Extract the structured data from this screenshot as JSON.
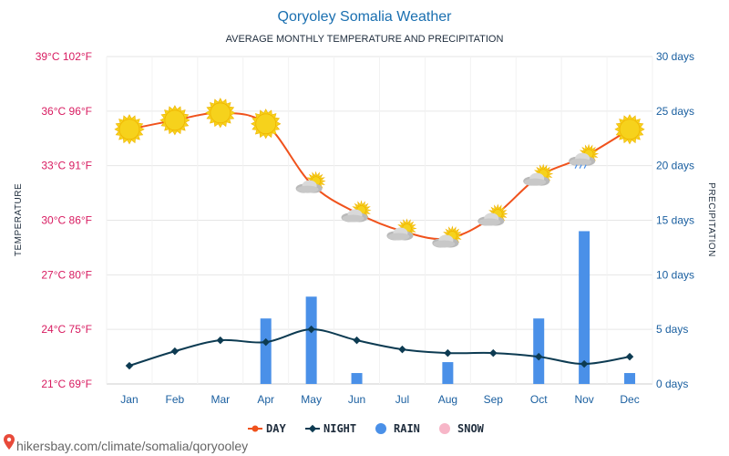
{
  "header": {
    "title": "Qoryoley Somalia Weather",
    "subtitle": "AVERAGE MONTHLY TEMPERATURE AND PRECIPITATION"
  },
  "footer": {
    "url": "hikersbay.com/climate/somalia/qoryooley"
  },
  "chart_data": {
    "type": "line",
    "categories": [
      "Jan",
      "Feb",
      "Mar",
      "Apr",
      "May",
      "Jun",
      "Jul",
      "Aug",
      "Sep",
      "Oct",
      "Nov",
      "Dec"
    ],
    "series": [
      {
        "name": "DAY",
        "type": "line",
        "axis": "left",
        "color": "#f0521c",
        "values": [
          35.0,
          35.5,
          35.9,
          35.3,
          32.0,
          30.4,
          29.4,
          29.0,
          30.2,
          32.4,
          33.5,
          35.0
        ]
      },
      {
        "name": "NIGHT",
        "type": "line",
        "axis": "left",
        "color": "#0d3b52",
        "values": [
          22.0,
          22.8,
          23.4,
          23.3,
          24.0,
          23.4,
          22.9,
          22.7,
          22.7,
          22.5,
          22.1,
          22.5
        ]
      },
      {
        "name": "RAIN",
        "type": "bar",
        "axis": "right",
        "color": "#4a90e8",
        "values": [
          0,
          0,
          0,
          6,
          8,
          1,
          0,
          2,
          0,
          6,
          14,
          1
        ]
      },
      {
        "name": "SNOW",
        "type": "bar",
        "axis": "right",
        "color": "#f7b6c8",
        "values": [
          0,
          0,
          0,
          0,
          0,
          0,
          0,
          0,
          0,
          0,
          0,
          0
        ]
      }
    ],
    "y_left": {
      "title": "TEMPERATURE",
      "range": [
        21,
        39
      ],
      "tick_labels": [
        "21°C 69°F",
        "24°C 75°F",
        "27°C 80°F",
        "30°C 86°F",
        "33°C 91°F",
        "36°C 96°F",
        "39°C 102°F"
      ]
    },
    "y_right": {
      "title": "PRECIPITATION",
      "range": [
        0,
        30
      ],
      "tick_labels": [
        "0 days",
        "5 days",
        "10 days",
        "15 days",
        "20 days",
        "25 days",
        "30 days"
      ]
    },
    "grid": true,
    "legend_placement": "bottom-center",
    "weather_icons": [
      "sun-icon",
      "sun-icon",
      "sun-icon",
      "sun-icon",
      "partly-cloudy-icon",
      "partly-cloudy-icon",
      "partly-cloudy-icon",
      "partly-cloudy-icon",
      "partly-cloudy-icon",
      "partly-cloudy-icon",
      "rain-cloud-icon",
      "sun-icon"
    ],
    "colors": {
      "sun": "#f6d21c",
      "sun_stroke": "#f0b400",
      "cloud": "#c8c8c8",
      "grid": "#e6e6e6"
    }
  }
}
